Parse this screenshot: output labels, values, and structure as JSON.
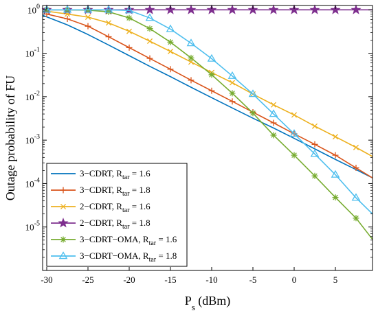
{
  "chart_data": {
    "type": "line",
    "title": "",
    "xlabel": {
      "main": "P",
      "sub": "s",
      "rest": " (dBm)"
    },
    "ylabel": "Outage probability of FU",
    "xlim": [
      -30.5,
      9.5
    ],
    "ylim_log10": [
      -6,
      0.1
    ],
    "yscale": "log",
    "grid": false,
    "legend_position": "bottom-left",
    "xticks": [
      -30,
      -25,
      -20,
      -15,
      -10,
      -5,
      0,
      5
    ],
    "yticks": [
      {
        "base": "10",
        "exp": "0",
        "value": 1
      },
      {
        "base": "10",
        "exp": "-1",
        "value": 0.1
      },
      {
        "base": "10",
        "exp": "-2",
        "value": 0.01
      },
      {
        "base": "10",
        "exp": "-3",
        "value": 0.001
      },
      {
        "base": "10",
        "exp": "-4",
        "value": 0.0001
      },
      {
        "base": "10",
        "exp": "-5",
        "value": 1e-05
      }
    ],
    "series": [
      {
        "name": "3-CDRT, R_tar = 1.6",
        "label_main": "3−CDRT, R",
        "label_sub": "tar",
        "label_tail": " = 1.6",
        "color": "#0072BD",
        "marker": "none",
        "x": [
          -30.5,
          -27.5,
          -25,
          -22.5,
          -20,
          -17.5,
          -15,
          -12.5,
          -10,
          -7.5,
          -5,
          -2.5,
          0,
          2.5,
          5,
          7.5,
          9.5
        ],
        "y": [
          0.75,
          0.45,
          0.27,
          0.155,
          0.088,
          0.05,
          0.029,
          0.0165,
          0.0095,
          0.0055,
          0.0032,
          0.0019,
          0.0011,
          0.00063,
          0.00036,
          0.00021,
          0.000135
        ]
      },
      {
        "name": "3-CDRT, R_tar = 1.8",
        "label_main": "3−CDRT, R",
        "label_sub": "tar",
        "label_tail": " = 1.8",
        "color": "#D95319",
        "marker": "plus",
        "x": [
          -30,
          -27.5,
          -25,
          -22.5,
          -20,
          -17.5,
          -15,
          -12.5,
          -10,
          -7.5,
          -5,
          -2.5,
          0,
          2.5,
          5,
          7.5
        ],
        "y": [
          0.8,
          0.62,
          0.42,
          0.24,
          0.135,
          0.076,
          0.043,
          0.024,
          0.0137,
          0.0078,
          0.0044,
          0.0025,
          0.0014,
          0.0008,
          0.00045,
          0.00023
        ],
        "line_end": [
          9.5,
          0.000135
        ]
      },
      {
        "name": "2-CDRT, R_tar = 1.6",
        "label_main": "2−CDRT, R",
        "label_sub": "tar",
        "label_tail": " = 1.6",
        "color": "#EDB120",
        "marker": "x",
        "x": [
          -30,
          -27.5,
          -25,
          -22.5,
          -20,
          -17.5,
          -15,
          -12.5,
          -10,
          -7.5,
          -5,
          -2.5,
          0,
          2.5,
          5,
          7.5
        ],
        "y": [
          0.93,
          0.8,
          0.68,
          0.5,
          0.32,
          0.19,
          0.11,
          0.063,
          0.036,
          0.021,
          0.0115,
          0.0065,
          0.0038,
          0.0021,
          0.0012,
          0.00068
        ],
        "line_end": [
          9.5,
          0.00042
        ]
      },
      {
        "name": "2-CDRT, R_tar = 1.8",
        "label_main": "2−CDRT, R",
        "label_sub": "tar",
        "label_tail": " = 1.8",
        "color": "#7E2F8E",
        "marker": "star",
        "x": [
          -30,
          -27.5,
          -25,
          -22.5,
          -20,
          -17.5,
          -15,
          -12.5,
          -10,
          -7.5,
          -5,
          -2.5,
          0,
          2.5,
          5,
          7.5
        ],
        "y": [
          1,
          1,
          1,
          1,
          1,
          1,
          1,
          1,
          1,
          1,
          1,
          1,
          1,
          1,
          1,
          1
        ],
        "line_end": [
          9.5,
          1
        ]
      },
      {
        "name": "3-CDRT-OMA, R_tar = 1.6",
        "label_main": "3−CDRT−OMA, R",
        "label_sub": "tar",
        "label_tail": " = 1.6",
        "color": "#77AC30",
        "marker": "asterisk",
        "x": [
          -30,
          -27.5,
          -25,
          -22.5,
          -20,
          -17.5,
          -15,
          -12.5,
          -10,
          -7.5,
          -5,
          -2.5,
          0,
          2.5,
          5,
          7.5
        ],
        "y": [
          1,
          1,
          0.98,
          0.9,
          0.65,
          0.37,
          0.18,
          0.078,
          0.032,
          0.012,
          0.0042,
          0.0013,
          0.00045,
          0.00015,
          4.8e-05,
          1.6e-05
        ],
        "line_end": [
          9.5,
          5.2e-06
        ]
      },
      {
        "name": "3-CDRT-OMA, R_tar = 1.8",
        "label_main": "3−CDRT−OMA, R",
        "label_sub": "tar",
        "label_tail": " = 1.8",
        "color": "#4DBEEE",
        "marker": "triangle",
        "x": [
          -30,
          -27.5,
          -25,
          -22.5,
          -20,
          -17.5,
          -15,
          -12.5,
          -10,
          -7.5,
          -5,
          -2.5,
          0,
          2.5,
          5,
          7.5
        ],
        "y": [
          1,
          1,
          1,
          1,
          0.97,
          0.65,
          0.36,
          0.17,
          0.075,
          0.03,
          0.0115,
          0.004,
          0.0014,
          0.00048,
          0.00016,
          4.7e-05
        ],
        "line_end": [
          9.5,
          2e-05
        ]
      }
    ]
  }
}
